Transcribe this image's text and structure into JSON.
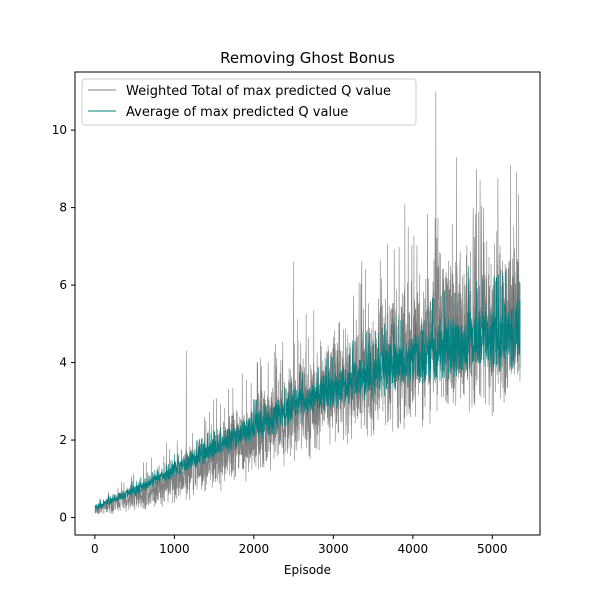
{
  "chart_data": {
    "type": "line",
    "title": "Removing Ghost Bonus",
    "xlabel": "Episode",
    "ylabel": "",
    "xlim": [
      -250,
      5600
    ],
    "ylim": [
      -0.45,
      11.5
    ],
    "xticks": [
      0,
      1000,
      2000,
      3000,
      4000,
      5000
    ],
    "yticks": [
      0,
      2,
      4,
      6,
      8,
      10
    ],
    "grid": false,
    "legend_position": "top-left",
    "episodes": 5350,
    "series": [
      {
        "name": "Weighted Total of max predicted Q value",
        "color": "#808080",
        "trend": [
          [
            0,
            0.2
          ],
          [
            500,
            0.55
          ],
          [
            1000,
            1.0
          ],
          [
            1500,
            1.55
          ],
          [
            2000,
            2.1
          ],
          [
            2500,
            2.7
          ],
          [
            3000,
            3.3
          ],
          [
            3500,
            3.85
          ],
          [
            4000,
            4.35
          ],
          [
            4500,
            4.8
          ],
          [
            5000,
            5.05
          ],
          [
            5350,
            5.15
          ]
        ],
        "noise_amplitude": [
          [
            0,
            0.15
          ],
          [
            1000,
            0.7
          ],
          [
            2000,
            1.2
          ],
          [
            3000,
            1.7
          ],
          [
            4000,
            2.2
          ],
          [
            5000,
            2.5
          ],
          [
            5350,
            2.5
          ]
        ],
        "peaks": [
          [
            4290,
            11.0
          ],
          [
            2500,
            6.6
          ],
          [
            3900,
            8.1
          ],
          [
            4550,
            9.3
          ],
          [
            4800,
            9.0
          ],
          [
            5230,
            9.1
          ],
          [
            1150,
            4.3
          ]
        ]
      },
      {
        "name": "Average of max predicted Q value",
        "color": "#008080",
        "trend": [
          [
            0,
            0.25
          ],
          [
            500,
            0.7
          ],
          [
            1000,
            1.25
          ],
          [
            1500,
            1.8
          ],
          [
            2000,
            2.35
          ],
          [
            2500,
            2.85
          ],
          [
            3000,
            3.3
          ],
          [
            3500,
            3.75
          ],
          [
            4000,
            4.1
          ],
          [
            4500,
            4.45
          ],
          [
            5000,
            4.65
          ],
          [
            5350,
            4.75
          ]
        ],
        "noise_amplitude": [
          [
            0,
            0.1
          ],
          [
            1000,
            0.25
          ],
          [
            2000,
            0.45
          ],
          [
            3000,
            0.6
          ],
          [
            4000,
            0.85
          ],
          [
            5000,
            1.05
          ],
          [
            5350,
            1.05
          ]
        ],
        "peaks": [
          [
            4700,
            6.5
          ],
          [
            5050,
            6.2
          ]
        ]
      }
    ]
  }
}
